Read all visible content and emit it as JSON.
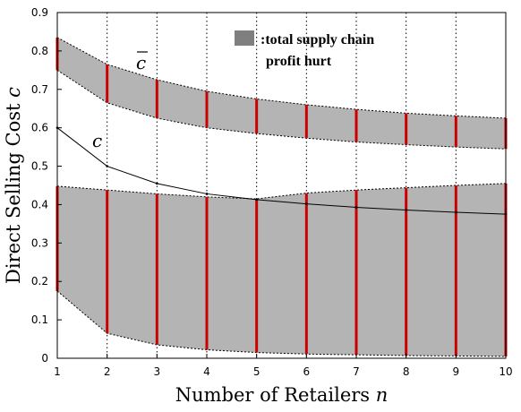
{
  "chart_data": {
    "type": "area",
    "x": [
      1,
      2,
      3,
      4,
      5,
      6,
      7,
      8,
      9,
      10
    ],
    "xlabel_text": "Number of Retailers ",
    "xlabel_var": "n",
    "ylabel_text": "Direct Selling Cost ",
    "ylabel_var": "c",
    "xlim": [
      1,
      10
    ],
    "ylim": [
      0,
      0.9
    ],
    "xticks": [
      "1",
      "2",
      "3",
      "4",
      "5",
      "6",
      "7",
      "8",
      "9",
      "10"
    ],
    "yticks": [
      "0",
      "0.1",
      "0.2",
      "0.3",
      "0.4",
      "0.5",
      "0.6",
      "0.7",
      "0.8",
      "0.9"
    ],
    "grid": "vertical dotted",
    "legend": {
      "placement": "top-right",
      "line1": ":total supply chain",
      "line2": "profit hurt",
      "swatch_color": "#7f7f7f"
    },
    "regions": [
      {
        "upper": [
          0.835,
          0.765,
          0.725,
          0.695,
          0.675,
          0.66,
          0.648,
          0.638,
          0.631,
          0.625
        ],
        "lower": [
          0.75,
          0.665,
          0.625,
          0.6,
          0.585,
          0.573,
          0.563,
          0.556,
          0.55,
          0.545
        ]
      },
      {
        "upper": [
          0.448,
          0.438,
          0.428,
          0.42,
          0.415,
          0.43,
          0.438,
          0.444,
          0.45,
          0.455
        ],
        "lower": [
          0.175,
          0.065,
          0.035,
          0.022,
          0.015,
          0.011,
          0.009,
          0.007,
          0.006,
          0.005
        ]
      }
    ],
    "curve_c_lower": {
      "label": "c",
      "values": [
        0.6,
        0.5,
        0.455,
        0.428,
        0.413,
        0.402,
        0.393,
        0.386,
        0.38,
        0.375
      ]
    },
    "curve_c_upper_label": "c",
    "colors": {
      "fill": "#b4b4b4",
      "interval": "#cc0000",
      "boundary": "#000000",
      "grid": "#000000"
    }
  }
}
